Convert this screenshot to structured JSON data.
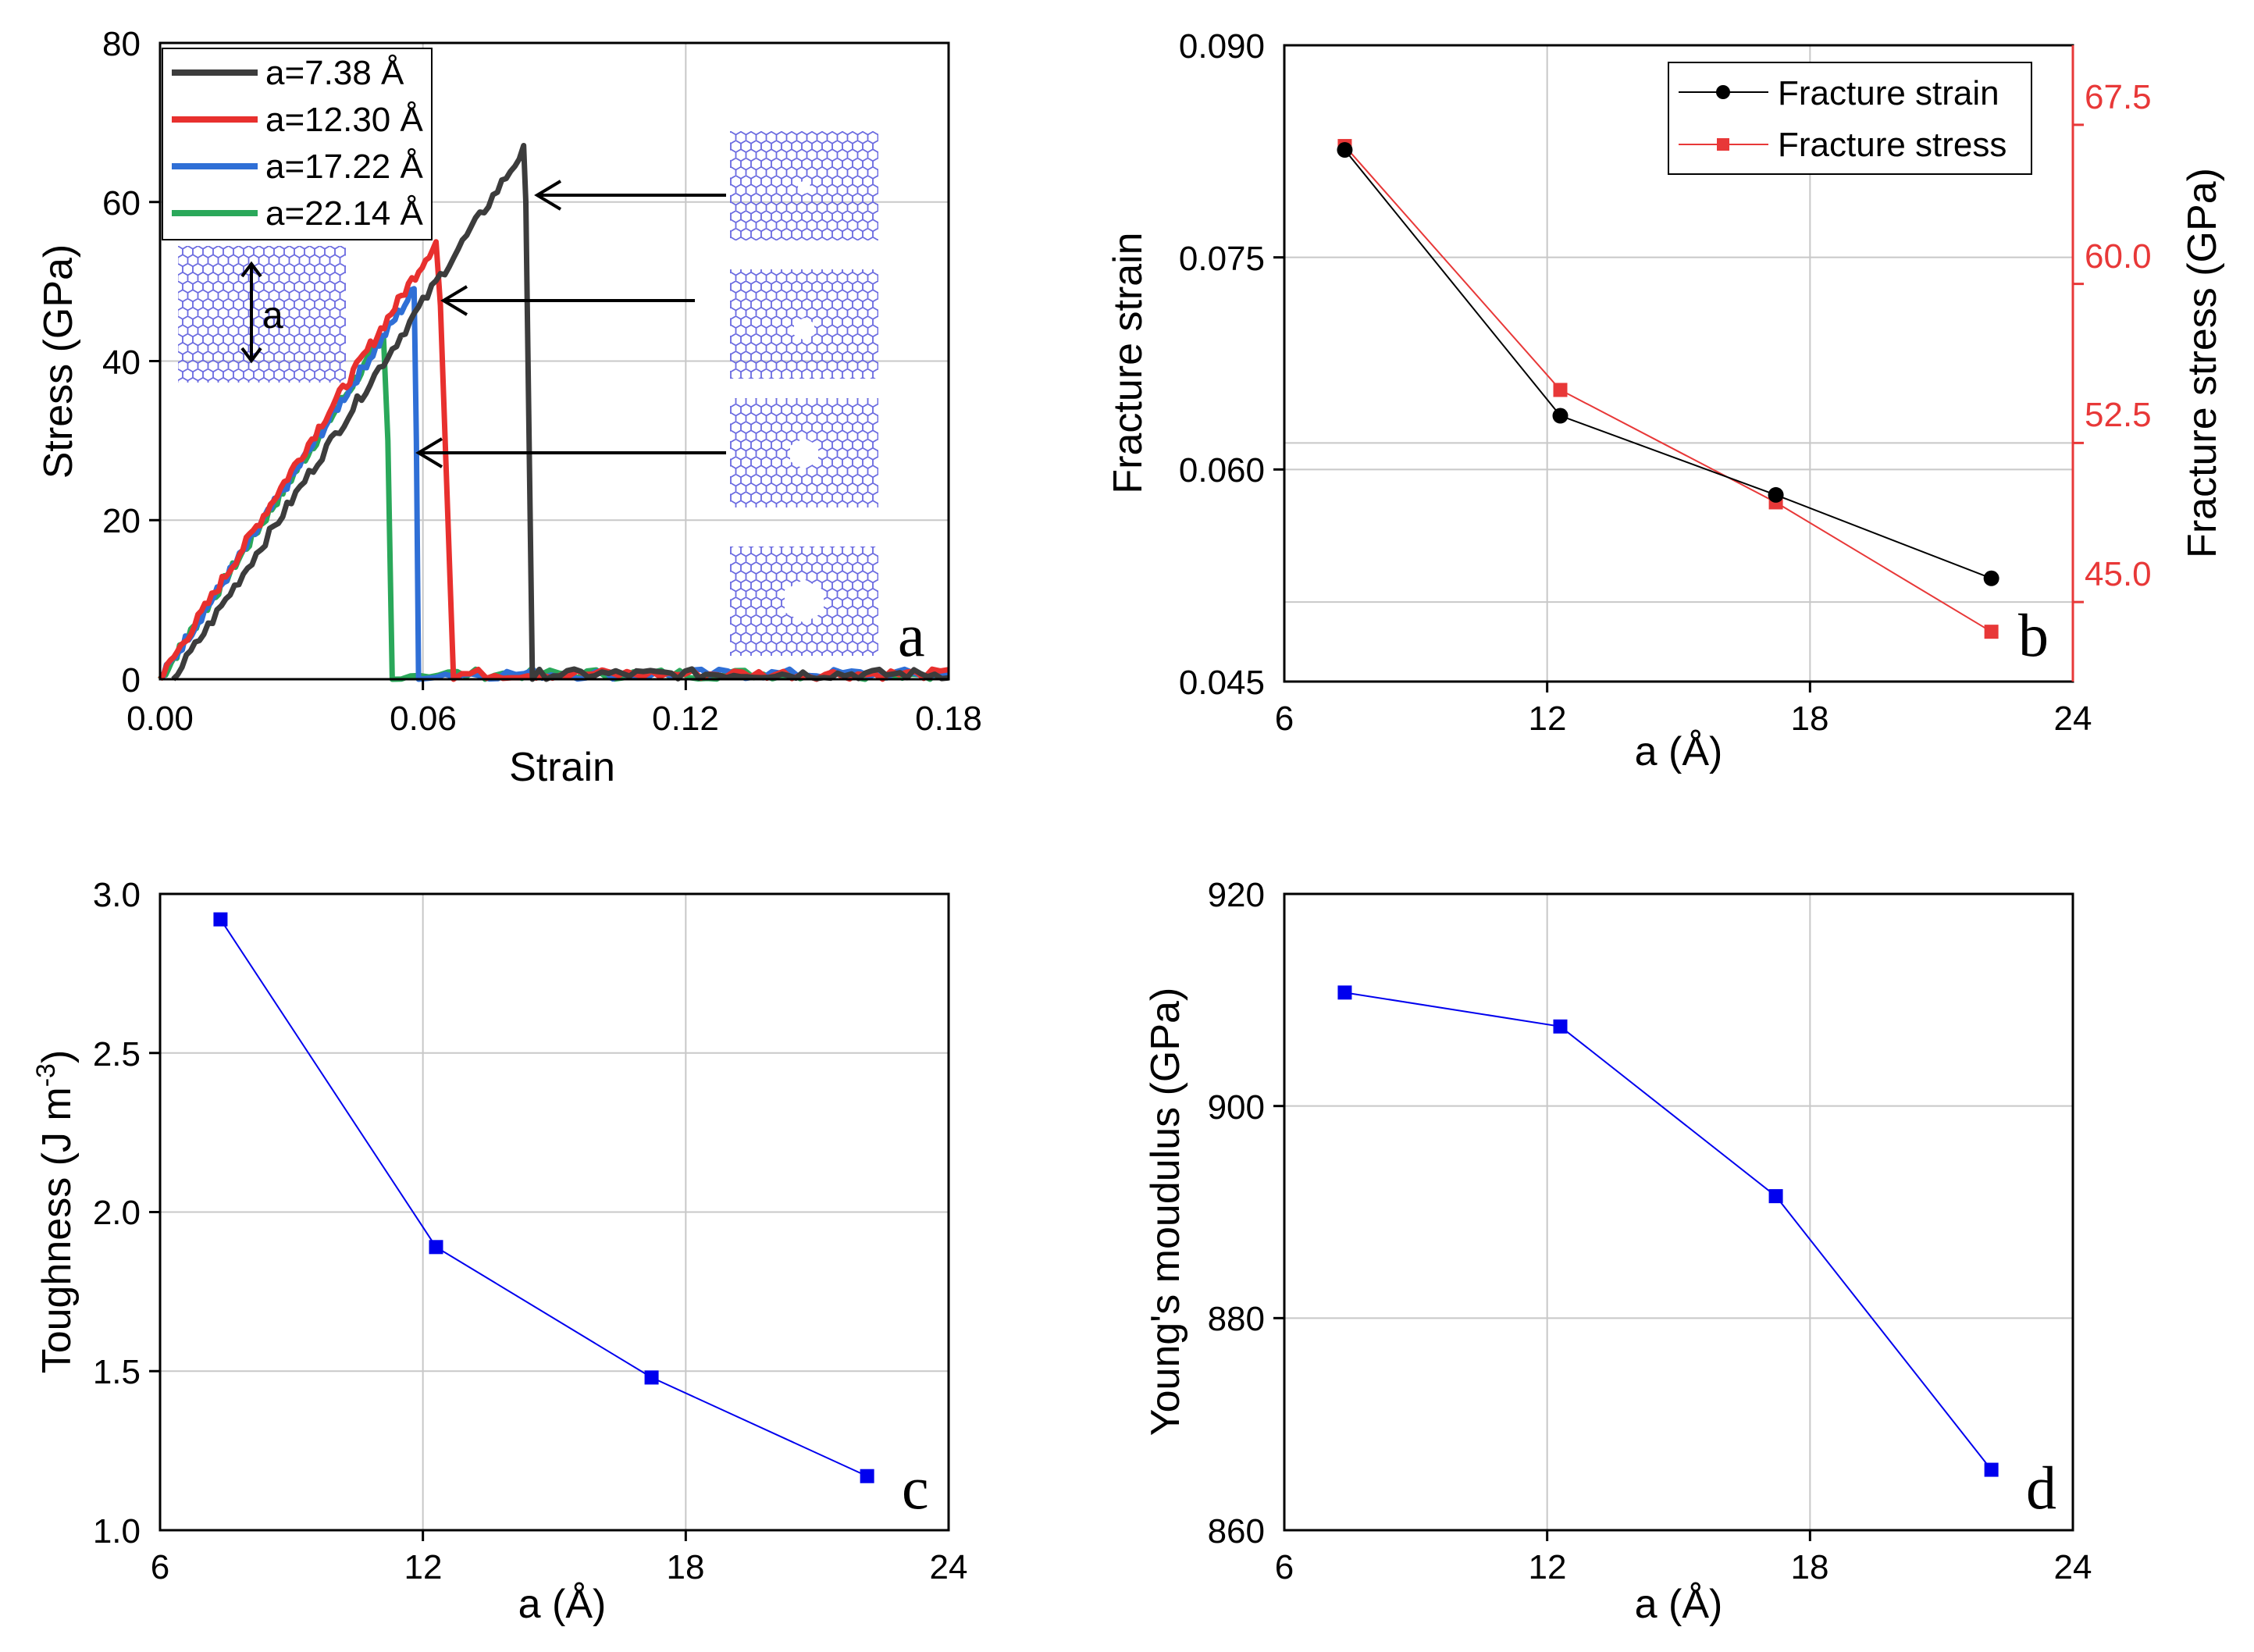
{
  "colors": {
    "black": "#3c3c3c",
    "red": "#e8302e",
    "blue": "#2f6fd6",
    "green": "#2aa85a",
    "marker_blue": "#0000ee",
    "stress_red": "#e83838",
    "lattice": "#6a6ae0"
  },
  "panels": [
    {
      "id": "a",
      "label": "a",
      "xlabel": "Strain",
      "ylabel": "Stress (GPa)",
      "xticks": [
        "0.00",
        "0.06",
        "0.12",
        "0.18"
      ],
      "yticks": [
        "0",
        "20",
        "40",
        "60",
        "80"
      ],
      "inset_label": "a",
      "legend": [
        "a=7.38 Å",
        "a=12.30 Å",
        "a=17.22 Å",
        "a=22.14 Å"
      ]
    },
    {
      "id": "b",
      "label": "b",
      "xlabel": "a (Å)",
      "ylabel": "Fracture strain",
      "ylabel_right": "Fracture stress (GPa)",
      "xticks": [
        "6",
        "12",
        "18",
        "24"
      ],
      "yticks": [
        "0.045",
        "0.060",
        "0.075",
        "0.090"
      ],
      "yticks_right": [
        "45.0",
        "52.5",
        "60.0",
        "67.5"
      ],
      "legend": [
        "Fracture strain",
        "Fracture stress"
      ]
    },
    {
      "id": "c",
      "label": "c",
      "xlabel": "a (Å)",
      "ylabel_main": "Toughness (J m",
      "ylabel_sup": "-3",
      "ylabel_tail": ")",
      "xticks": [
        "6",
        "12",
        "18",
        "24"
      ],
      "yticks": [
        "1.0",
        "1.5",
        "2.0",
        "2.5",
        "3.0"
      ]
    },
    {
      "id": "d",
      "label": "d",
      "xlabel": "a (Å)",
      "ylabel": "Young's moudulus (GPa)",
      "xticks": [
        "6",
        "12",
        "18",
        "24"
      ],
      "yticks": [
        "860",
        "880",
        "900",
        "920"
      ]
    }
  ],
  "chart_data": [
    {
      "type": "line",
      "title": "",
      "xlabel": "Strain",
      "ylabel": "Stress (GPa)",
      "xlim": [
        0,
        0.18
      ],
      "ylim": [
        0,
        80
      ],
      "legend_position": "top-left",
      "series": [
        {
          "name": "a=7.38 Å",
          "x": [
            0.003,
            0.083,
            0.0835,
            0.085,
            0.18
          ],
          "y": [
            0,
            66.5,
            60,
            0,
            0
          ]
        },
        {
          "name": "a=12.30 Å",
          "x": [
            0.0,
            0.063,
            0.064,
            0.067,
            0.18
          ],
          "y": [
            0,
            55,
            47,
            0,
            0
          ]
        },
        {
          "name": "a=17.22 Å",
          "x": [
            0.0,
            0.058,
            0.0585,
            0.059,
            0.18
          ],
          "y": [
            0,
            49,
            30,
            0,
            0
          ]
        },
        {
          "name": "a=22.14 Å",
          "x": [
            0.0,
            0.051,
            0.052,
            0.053,
            0.18
          ],
          "y": [
            0,
            43,
            30,
            0,
            0
          ]
        }
      ]
    },
    {
      "type": "line",
      "title": "",
      "xlabel": "a (Å)",
      "ylabel": "Fracture strain",
      "ylabel_right": "Fracture stress (GPa)",
      "xlim": [
        6,
        24
      ],
      "ylim": [
        0.045,
        0.09
      ],
      "ylim_right": [
        41.25,
        71.25
      ],
      "legend_position": "top-right",
      "series": [
        {
          "name": "Fracture strain",
          "axis": "left",
          "x": [
            7.38,
            12.3,
            17.22,
            22.14
          ],
          "y": [
            0.0826,
            0.0638,
            0.0582,
            0.0523
          ]
        },
        {
          "name": "Fracture stress",
          "axis": "right",
          "x": [
            7.38,
            12.3,
            17.22,
            22.14
          ],
          "y": [
            66.5,
            55.0,
            49.7,
            43.6
          ]
        }
      ]
    },
    {
      "type": "line",
      "title": "",
      "xlabel": "a (Å)",
      "ylabel": "Toughness (J m-3)",
      "xlim": [
        6,
        24
      ],
      "ylim": [
        1.0,
        3.0
      ],
      "series": [
        {
          "name": "Toughness",
          "x": [
            7.38,
            12.3,
            17.22,
            22.14
          ],
          "y": [
            2.92,
            1.89,
            1.48,
            1.17
          ]
        }
      ]
    },
    {
      "type": "line",
      "title": "",
      "xlabel": "a (Å)",
      "ylabel": "Young's moudulus (GPa)",
      "xlim": [
        6,
        24
      ],
      "ylim": [
        860,
        920
      ],
      "series": [
        {
          "name": "Young's modulus",
          "x": [
            7.38,
            12.3,
            17.22,
            22.14
          ],
          "y": [
            910.7,
            907.5,
            891.5,
            865.7
          ]
        }
      ]
    }
  ]
}
